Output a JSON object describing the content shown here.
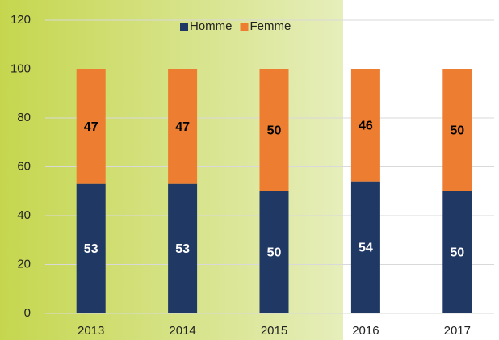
{
  "chart_data": {
    "type": "stacked_bar",
    "categories": [
      "2013",
      "2014",
      "2015",
      "2016",
      "2017"
    ],
    "series": [
      {
        "name": "Homme",
        "color": "#203864",
        "values": [
          53,
          53,
          50,
          54,
          50
        ]
      },
      {
        "name": "Femme",
        "color": "#ed7d31",
        "values": [
          47,
          47,
          50,
          46,
          50
        ]
      }
    ],
    "ylim": [
      0,
      120
    ],
    "yticks": [
      0,
      20,
      40,
      60,
      80,
      100,
      120
    ],
    "grid": true,
    "legend": "top"
  }
}
